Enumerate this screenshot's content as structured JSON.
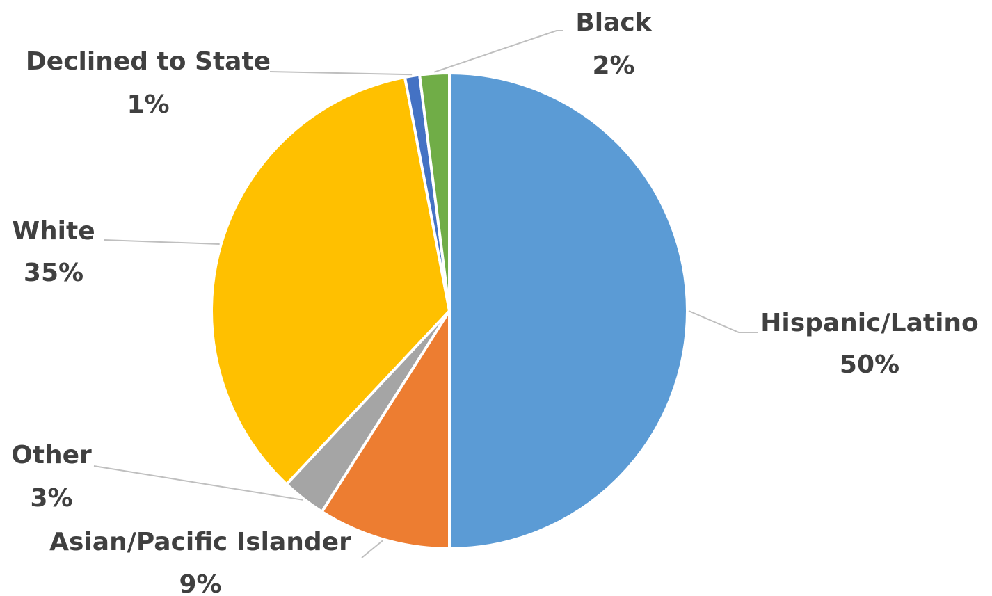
{
  "chart_data": {
    "type": "pie",
    "slices": [
      {
        "label": "Hispanic/Latino",
        "value": 50,
        "value_label": "50%",
        "color": "#5B9BD5"
      },
      {
        "label": "Asian/Pacific Islander",
        "value": 9,
        "value_label": "9%",
        "color": "#ED7D31"
      },
      {
        "label": "Other",
        "value": 3,
        "value_label": "3%",
        "color": "#A5A5A5"
      },
      {
        "label": "White",
        "value": 35,
        "value_label": "35%",
        "color": "#FFC000"
      },
      {
        "label": "Declined to State",
        "value": 1,
        "value_label": "1%",
        "color": "#4472C4"
      },
      {
        "label": "Black",
        "value": 2,
        "value_label": "2%",
        "color": "#70AD47"
      }
    ],
    "legend": "none"
  }
}
